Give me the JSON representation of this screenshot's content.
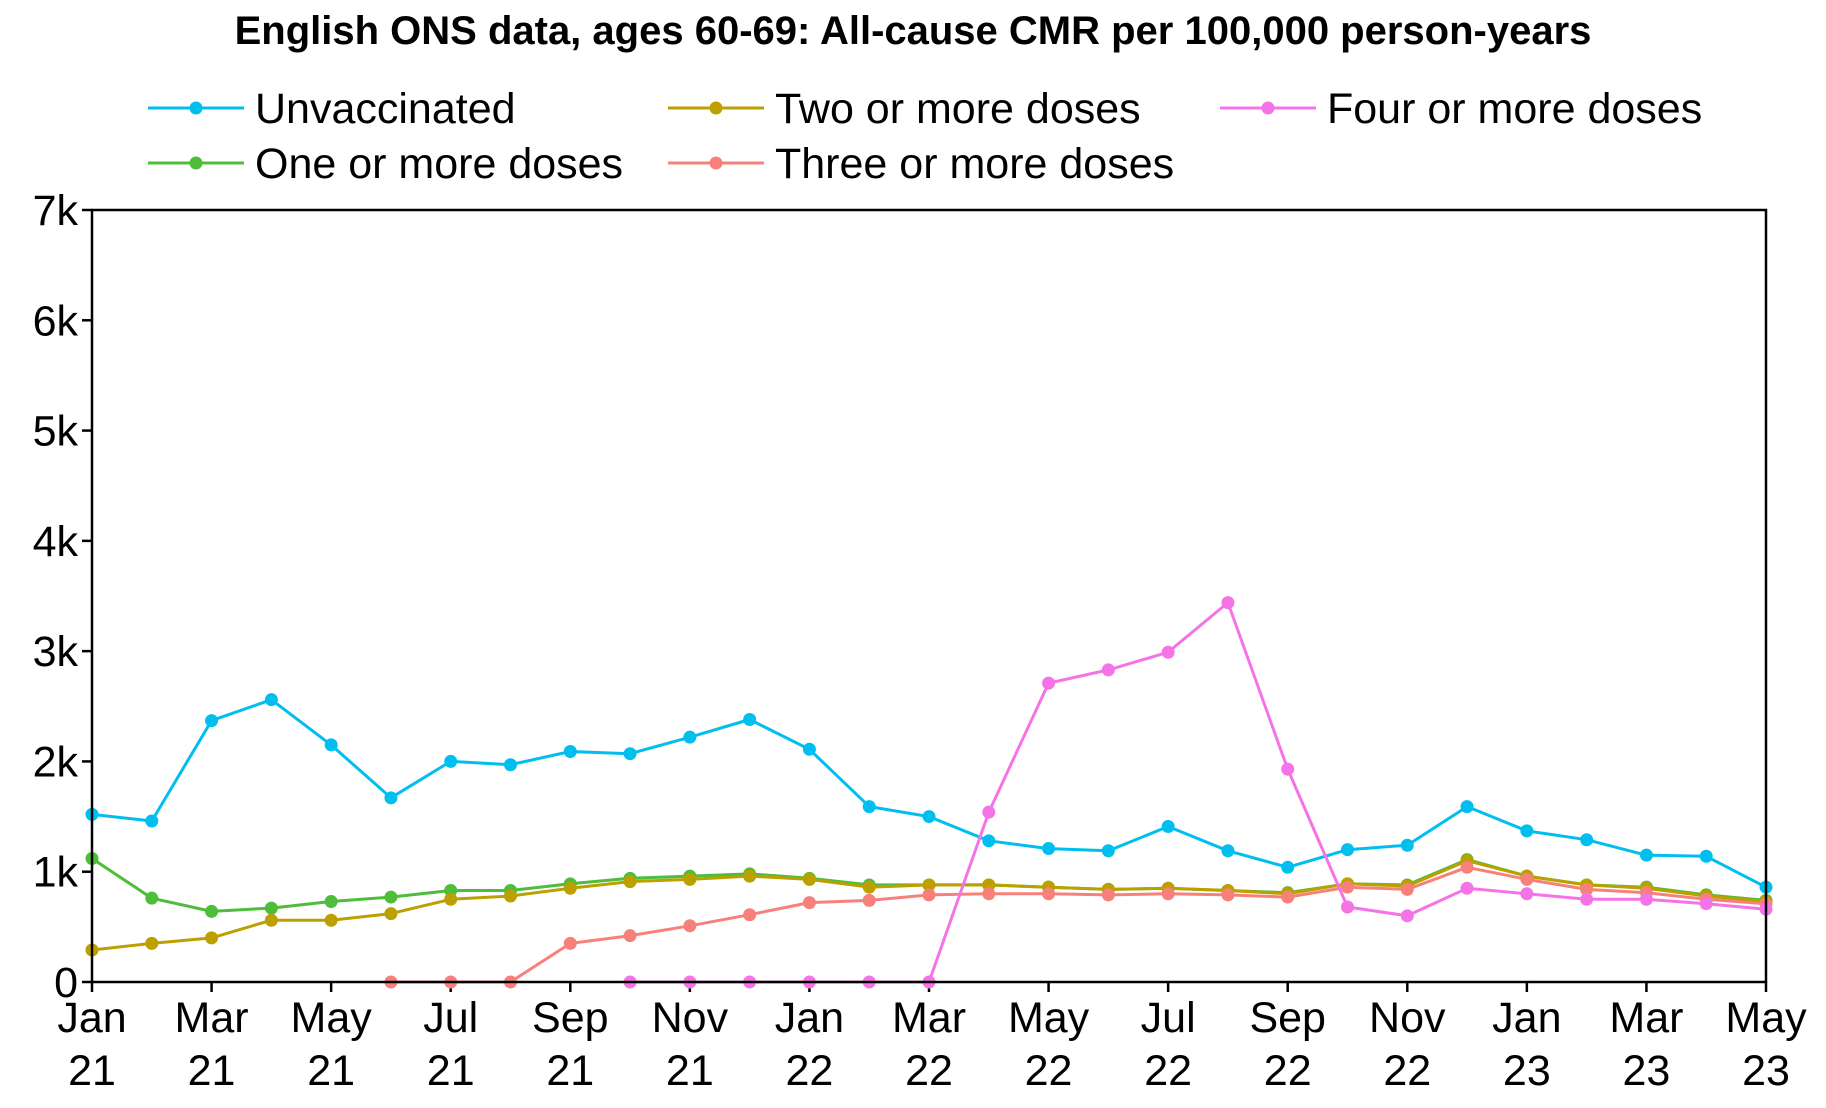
{
  "chart_data": {
    "type": "line",
    "title": "English ONS data, ages 60-69: All-cause CMR per 100,000 person-years",
    "xlabel": "",
    "ylabel": "",
    "ylim": [
      0,
      7000
    ],
    "yticks": [
      {
        "value": 0,
        "label": "0"
      },
      {
        "value": 1000,
        "label": "1k"
      },
      {
        "value": 2000,
        "label": "2k"
      },
      {
        "value": 3000,
        "label": "3k"
      },
      {
        "value": 4000,
        "label": "4k"
      },
      {
        "value": 5000,
        "label": "5k"
      },
      {
        "value": 6000,
        "label": "6k"
      },
      {
        "value": 7000,
        "label": "7k"
      }
    ],
    "x": [
      "2021-01",
      "2021-02",
      "2021-03",
      "2021-04",
      "2021-05",
      "2021-06",
      "2021-07",
      "2021-08",
      "2021-09",
      "2021-10",
      "2021-11",
      "2021-12",
      "2022-01",
      "2022-02",
      "2022-03",
      "2022-04",
      "2022-05",
      "2022-06",
      "2022-07",
      "2022-08",
      "2022-09",
      "2022-10",
      "2022-11",
      "2022-12",
      "2023-01",
      "2023-02",
      "2023-03",
      "2023-04",
      "2023-05"
    ],
    "xticks": [
      {
        "x": "2021-01",
        "line1": "Jan",
        "line2": "21"
      },
      {
        "x": "2021-03",
        "line1": "Mar",
        "line2": "21"
      },
      {
        "x": "2021-05",
        "line1": "May",
        "line2": "21"
      },
      {
        "x": "2021-07",
        "line1": "Jul",
        "line2": "21"
      },
      {
        "x": "2021-09",
        "line1": "Sep",
        "line2": "21"
      },
      {
        "x": "2021-11",
        "line1": "Nov",
        "line2": "21"
      },
      {
        "x": "2022-01",
        "line1": "Jan",
        "line2": "22"
      },
      {
        "x": "2022-03",
        "line1": "Mar",
        "line2": "22"
      },
      {
        "x": "2022-05",
        "line1": "May",
        "line2": "22"
      },
      {
        "x": "2022-07",
        "line1": "Jul",
        "line2": "22"
      },
      {
        "x": "2022-09",
        "line1": "Sep",
        "line2": "22"
      },
      {
        "x": "2022-11",
        "line1": "Nov",
        "line2": "22"
      },
      {
        "x": "2023-01",
        "line1": "Jan",
        "line2": "23"
      },
      {
        "x": "2023-03",
        "line1": "Mar",
        "line2": "23"
      },
      {
        "x": "2023-05",
        "line1": "May",
        "line2": "23"
      }
    ],
    "series": [
      {
        "name": "Unvaccinated",
        "color": "#00BFEF",
        "values": [
          1520,
          1460,
          2370,
          2560,
          2150,
          1670,
          2000,
          1970,
          2090,
          2070,
          2220,
          2380,
          2110,
          1590,
          1500,
          1280,
          1210,
          1190,
          1410,
          1190,
          1040,
          1200,
          1240,
          1590,
          1370,
          1290,
          1150,
          1140,
          860
        ]
      },
      {
        "name": "One or more doses",
        "color": "#4DBD3A",
        "values": [
          1120,
          760,
          640,
          670,
          730,
          770,
          830,
          830,
          890,
          940,
          960,
          980,
          940,
          880,
          880,
          880,
          860,
          840,
          850,
          830,
          810,
          890,
          880,
          1110,
          960,
          880,
          860,
          790,
          740
        ]
      },
      {
        "name": "Two or more doses",
        "color": "#BCA000",
        "values": [
          290,
          350,
          400,
          560,
          560,
          620,
          750,
          780,
          850,
          910,
          930,
          960,
          930,
          860,
          880,
          880,
          860,
          840,
          850,
          830,
          800,
          890,
          870,
          1100,
          960,
          880,
          850,
          780,
          730
        ]
      },
      {
        "name": "Three or more doses",
        "color": "#F8807A",
        "values": [
          null,
          null,
          null,
          null,
          null,
          0,
          0,
          0,
          350,
          420,
          510,
          610,
          720,
          740,
          790,
          800,
          800,
          790,
          800,
          790,
          770,
          860,
          840,
          1040,
          930,
          840,
          810,
          750,
          710
        ]
      },
      {
        "name": "Four or more doses",
        "color": "#F573E6",
        "values": [
          null,
          null,
          null,
          null,
          null,
          null,
          null,
          null,
          null,
          0,
          0,
          0,
          0,
          0,
          0,
          1540,
          2710,
          2830,
          2990,
          3440,
          1930,
          680,
          600,
          850,
          800,
          750,
          750,
          710,
          660
        ]
      }
    ],
    "legend_position": "top"
  }
}
